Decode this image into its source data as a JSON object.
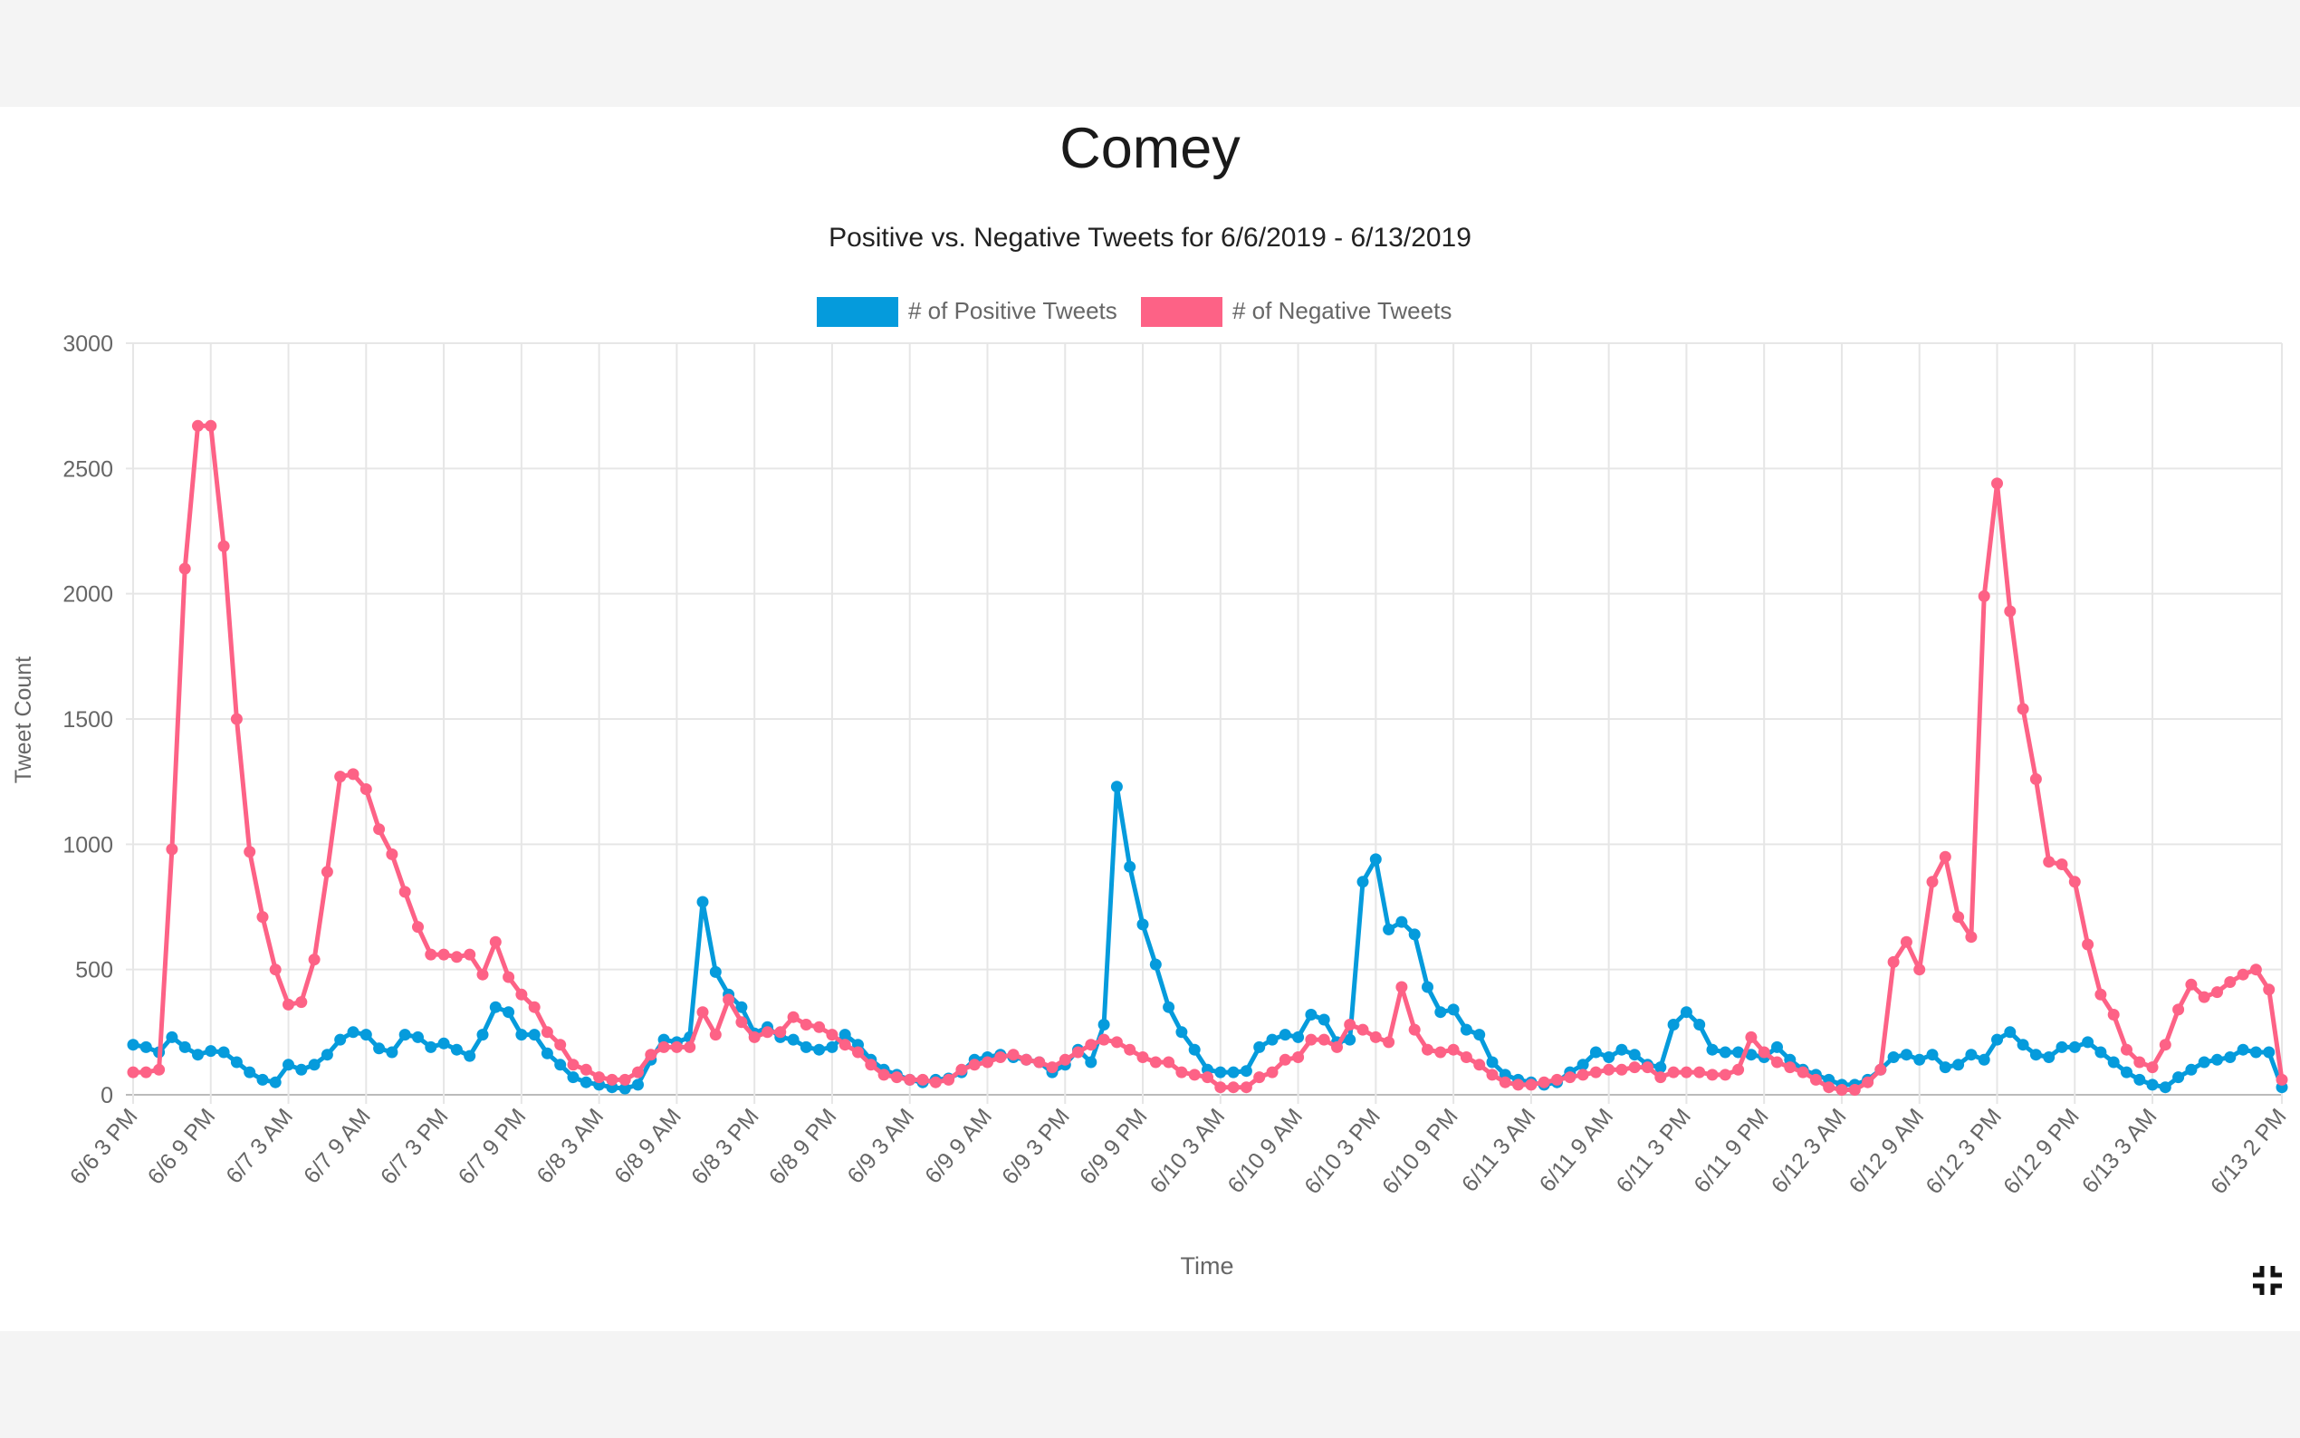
{
  "page": {
    "title": "Comey"
  },
  "colors": {
    "positive": "#059bdc",
    "negative": "#fd6286",
    "grid": "#e6e6e6",
    "text": "#666666"
  },
  "controls": {
    "exit_fullscreen_icon": "exit-fullscreen-icon"
  },
  "chart_data": {
    "type": "line",
    "title": "Positive vs. Negative Tweets for 6/6/2019 - 6/13/2019",
    "xlabel": "Time",
    "ylabel": "Tweet Count",
    "ylim": [
      0,
      3000
    ],
    "yticks": [
      0,
      500,
      1000,
      1500,
      2000,
      2500,
      3000
    ],
    "grid": true,
    "legend_position": "top",
    "x_tick_labels": [
      "6/6 3 PM",
      "6/6 9 PM",
      "6/7 3 AM",
      "6/7 9 AM",
      "6/7 3 PM",
      "6/7 9 PM",
      "6/8 3 AM",
      "6/8 9 AM",
      "6/8 3 PM",
      "6/8 9 PM",
      "6/9 3 AM",
      "6/9 9 AM",
      "6/9 3 PM",
      "6/9 9 PM",
      "6/10 3 AM",
      "6/10 9 AM",
      "6/10 3 PM",
      "6/10 9 PM",
      "6/11 3 AM",
      "6/11 9 AM",
      "6/11 3 PM",
      "6/11 9 PM",
      "6/12 3 AM",
      "6/12 9 AM",
      "6/12 3 PM",
      "6/12 9 PM",
      "6/13 3 AM",
      "6/13 2 PM"
    ],
    "x_unit": "hour",
    "x_start": "6/6 3 PM",
    "series": [
      {
        "name": "# of Positive Tweets",
        "color": "#059bdc",
        "values": [
          200,
          190,
          170,
          230,
          190,
          160,
          175,
          170,
          130,
          90,
          60,
          50,
          120,
          100,
          120,
          160,
          220,
          250,
          240,
          185,
          170,
          240,
          230,
          190,
          205,
          180,
          155,
          240,
          350,
          330,
          240,
          240,
          165,
          120,
          70,
          50,
          40,
          30,
          25,
          40,
          140,
          220,
          210,
          230,
          770,
          490,
          400,
          350,
          245,
          270,
          230,
          220,
          190,
          180,
          190,
          240,
          200,
          140,
          100,
          80,
          60,
          50,
          60,
          65,
          90,
          140,
          150,
          160,
          150,
          140,
          130,
          90,
          120,
          180,
          130,
          280,
          1230,
          910,
          680,
          520,
          350,
          250,
          180,
          100,
          90,
          90,
          95,
          190,
          220,
          240,
          230,
          320,
          300,
          210,
          220,
          850,
          940,
          660,
          690,
          640,
          430,
          330,
          340,
          260,
          240,
          130,
          80,
          60,
          50,
          40,
          50,
          90,
          120,
          170,
          150,
          180,
          160,
          120,
          110,
          280,
          330,
          280,
          180,
          170,
          170,
          160,
          150,
          190,
          140,
          100,
          80,
          60,
          40,
          40,
          60,
          100,
          150,
          160,
          140,
          160,
          110,
          120,
          160,
          140,
          220,
          250,
          200,
          160,
          150,
          190,
          190,
          210,
          170,
          130,
          90,
          60,
          40,
          30,
          70,
          100,
          130,
          140,
          150,
          180,
          170,
          170,
          30
        ]
      },
      {
        "name": "# of Negative Tweets",
        "color": "#fd6286",
        "values": [
          90,
          90,
          100,
          980,
          2100,
          2670,
          2670,
          2190,
          1500,
          970,
          710,
          500,
          360,
          370,
          540,
          890,
          1270,
          1280,
          1220,
          1060,
          960,
          810,
          670,
          560,
          560,
          550,
          560,
          480,
          610,
          470,
          400,
          350,
          250,
          200,
          120,
          100,
          70,
          60,
          60,
          90,
          160,
          190,
          190,
          190,
          330,
          240,
          380,
          290,
          230,
          250,
          250,
          310,
          280,
          270,
          240,
          200,
          170,
          120,
          80,
          70,
          60,
          60,
          50,
          60,
          100,
          120,
          130,
          150,
          160,
          140,
          130,
          110,
          140,
          170,
          200,
          220,
          210,
          180,
          150,
          130,
          130,
          90,
          80,
          70,
          30,
          30,
          30,
          70,
          90,
          140,
          150,
          220,
          220,
          190,
          280,
          260,
          230,
          210,
          430,
          260,
          180,
          170,
          180,
          150,
          120,
          80,
          50,
          40,
          40,
          50,
          60,
          70,
          80,
          90,
          100,
          100,
          110,
          110,
          70,
          90,
          90,
          90,
          80,
          80,
          100,
          230,
          170,
          130,
          110,
          90,
          60,
          30,
          20,
          20,
          50,
          100,
          530,
          610,
          500,
          850,
          950,
          710,
          630,
          1990,
          2440,
          1930,
          1540,
          1260,
          930,
          920,
          850,
          600,
          400,
          320,
          180,
          130,
          110,
          200,
          340,
          440,
          390,
          410,
          450,
          480,
          500,
          420,
          60
        ]
      }
    ]
  }
}
